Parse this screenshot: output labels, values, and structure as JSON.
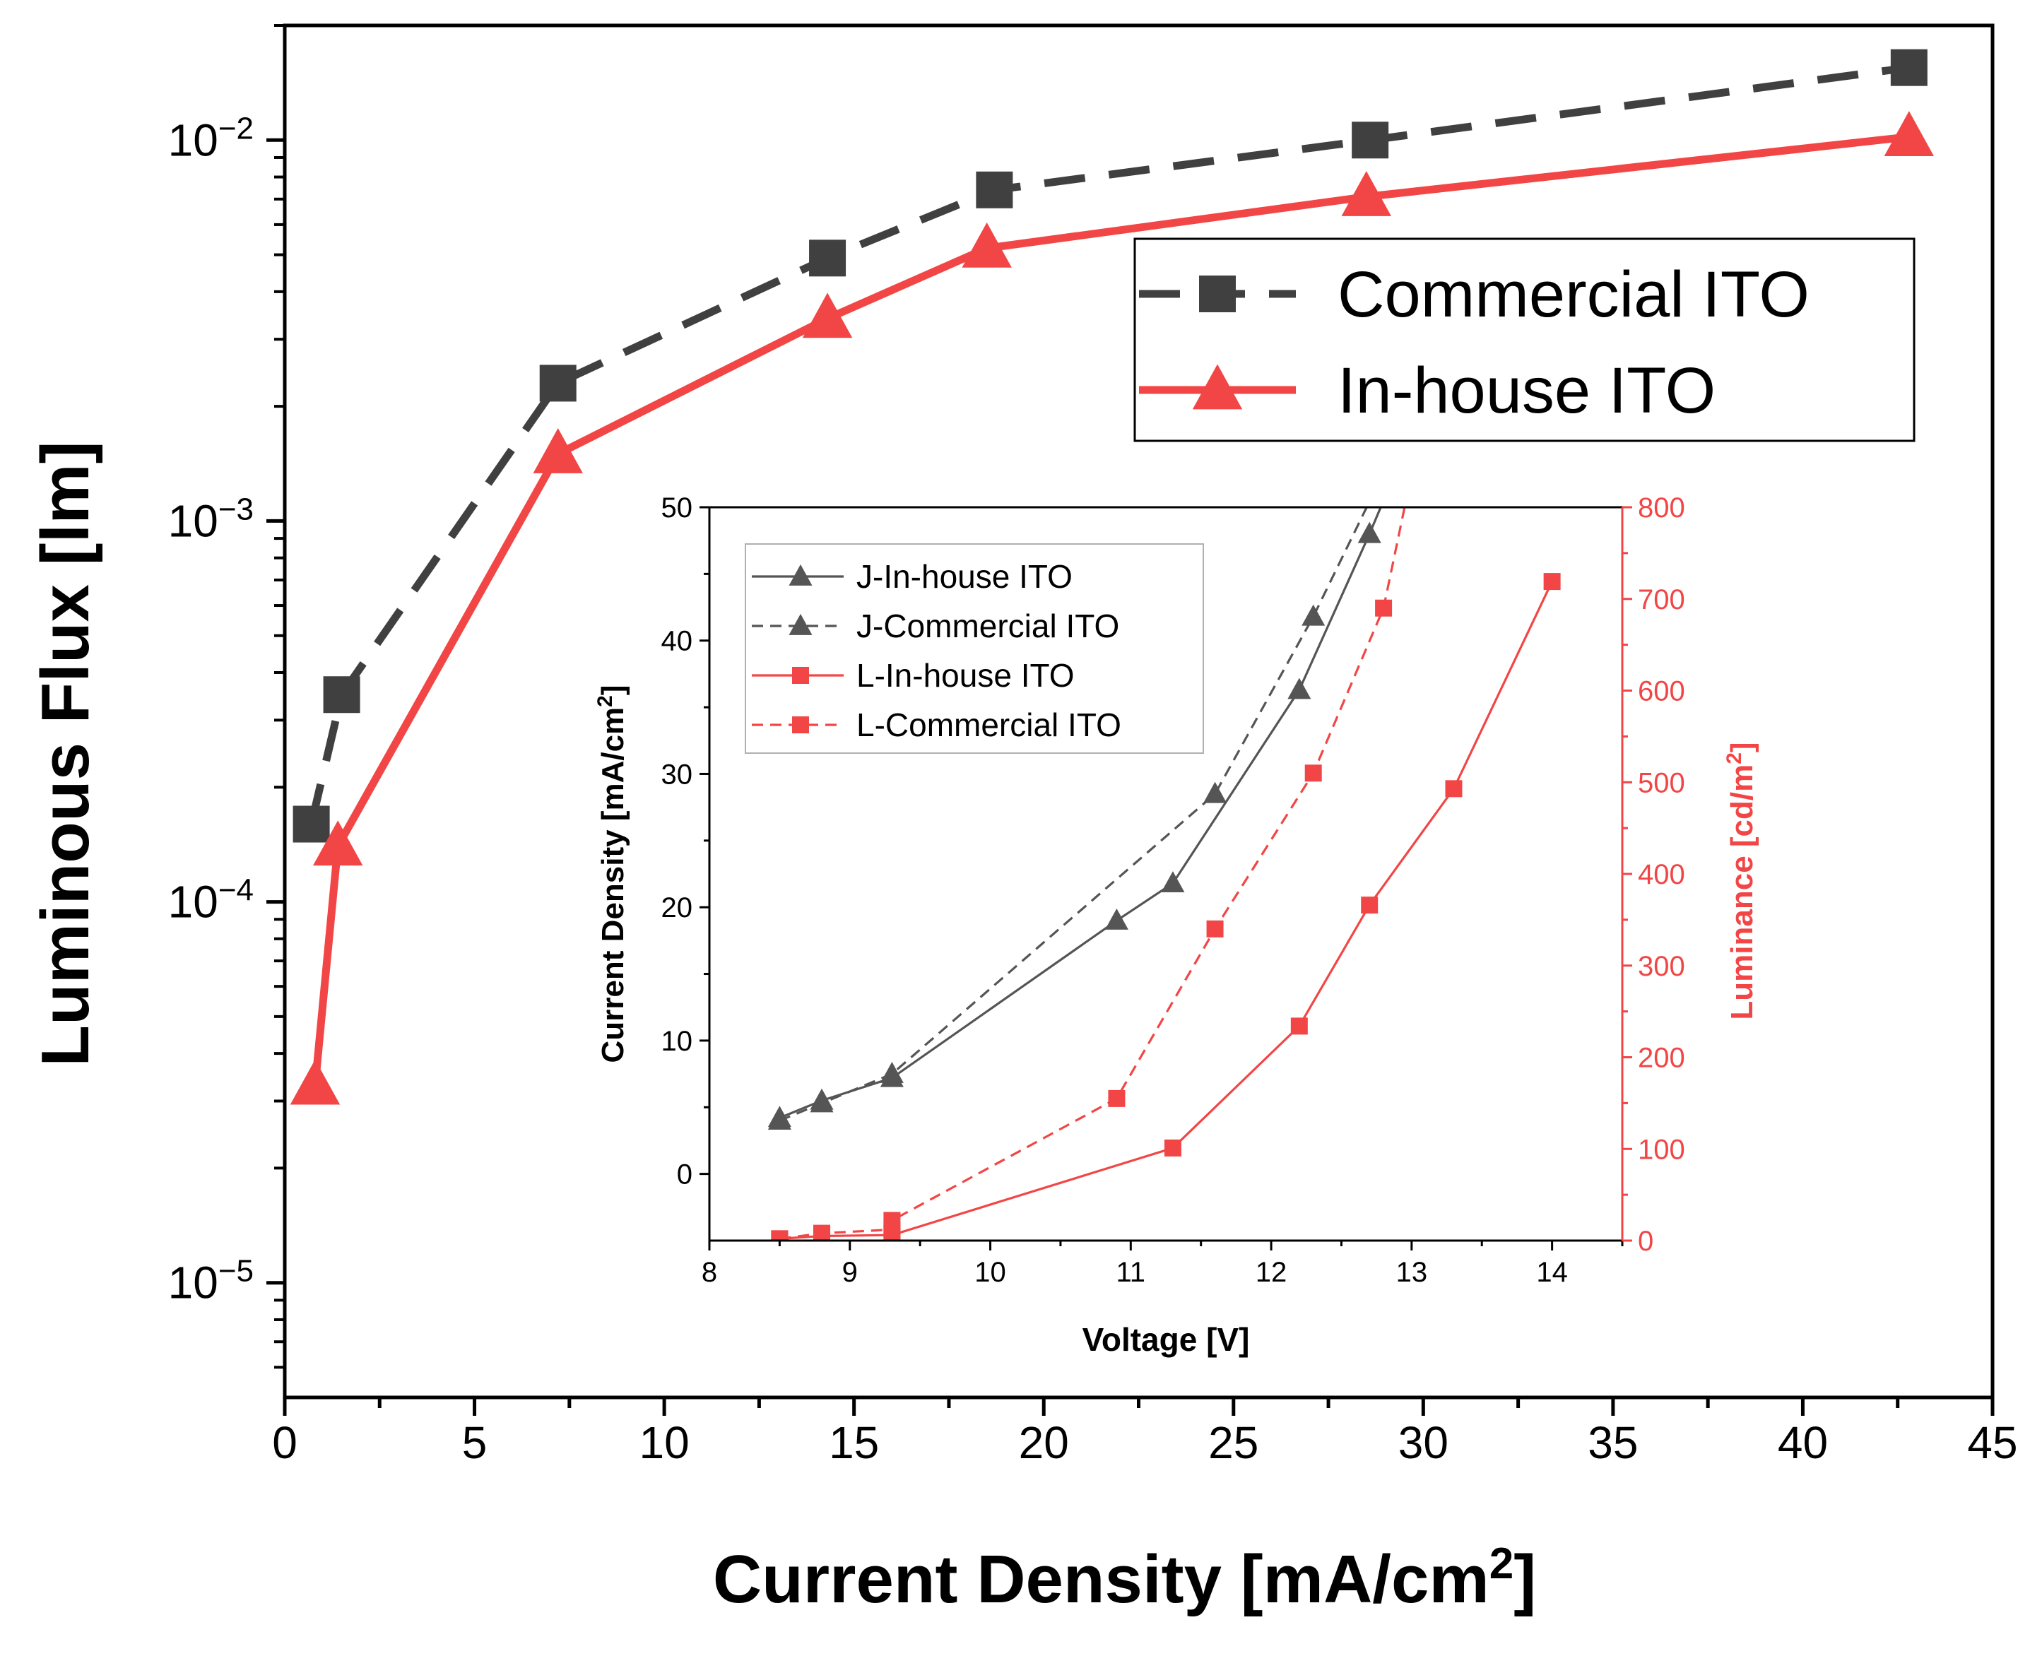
{
  "chart_data": [
    {
      "type": "line",
      "xlabel": "Current Density [mA/cm",
      "xlabel_sup": "2",
      "xlabel_tail": "]",
      "ylabel": "Luminous Flux [lm]",
      "xlim": [
        0,
        45
      ],
      "ylim": [
        5e-06,
        0.02
      ],
      "yscale": "log",
      "x_ticks": [
        "0",
        "5",
        "10",
        "15",
        "20",
        "25",
        "30",
        "35",
        "40",
        "45"
      ],
      "y_ticks": [
        {
          "base": "10",
          "exp": "−2",
          "value": 0.01
        },
        {
          "base": "10",
          "exp": "−3",
          "value": 0.001
        },
        {
          "base": "10",
          "exp": "−4",
          "value": 0.0001
        },
        {
          "base": "10",
          "exp": "−5",
          "value": 1e-05
        }
      ],
      "legend": "top-right",
      "series": [
        {
          "name": "Commercial ITO",
          "color": "#404040",
          "dash": "dashed",
          "marker": "square",
          "x": [
            0.7,
            1.5,
            7.2,
            14.3,
            18.7,
            28.6,
            42.8
          ],
          "y": [
            0.00016,
            0.00035,
            0.0023,
            0.0049,
            0.0074,
            0.01,
            0.0155
          ]
        },
        {
          "name": "In-house ITO",
          "color": "#f24646",
          "dash": "solid",
          "marker": "triangle",
          "x": [
            0.8,
            1.4,
            7.2,
            14.3,
            18.5,
            28.5,
            42.8
          ],
          "y": [
            3.3e-05,
            0.00014,
            0.0015,
            0.0034,
            0.0052,
            0.0071,
            0.0102
          ]
        }
      ]
    },
    {
      "type": "line",
      "xlabel": "Voltage [V]",
      "ylabel": "Current Density [mA/cm",
      "ylabel_sup": "2",
      "ylabel_tail": "]",
      "y2label": "Luminance [cd/m",
      "y2label_sup": "2",
      "y2label_tail": "]",
      "xlim": [
        8,
        14.5
      ],
      "ylim": [
        -5,
        50
      ],
      "y2lim": [
        0,
        800
      ],
      "x_ticks": [
        "8",
        "9",
        "10",
        "11",
        "12",
        "13",
        "14"
      ],
      "y_ticks": [
        "0",
        "10",
        "20",
        "30",
        "40",
        "50"
      ],
      "y2_ticks": [
        "0",
        "100",
        "200",
        "300",
        "400",
        "500",
        "600",
        "700",
        "800"
      ],
      "legend": "top-left",
      "series": [
        {
          "name": "J-In-house ITO",
          "axis": "left",
          "color": "#555555",
          "dash": "solid",
          "marker": "triangle",
          "x": [
            8.5,
            8.8,
            9.3,
            10.9,
            11.3,
            12.2,
            12.7,
            12.78
          ],
          "y": [
            4.2,
            5.5,
            7.2,
            19.0,
            21.8,
            36.3,
            48.0,
            50.0
          ]
        },
        {
          "name": "J-Commercial ITO",
          "axis": "left",
          "color": "#555555",
          "dash": "dashed",
          "marker": "triangle",
          "x": [
            8.5,
            8.8,
            9.3,
            11.6,
            12.3,
            12.68
          ],
          "y": [
            4.0,
            5.3,
            7.5,
            28.5,
            41.8,
            50.0
          ]
        },
        {
          "name": "L-In-house ITO",
          "axis": "right",
          "color": "#f24646",
          "dash": "solid",
          "marker": "square",
          "x": [
            8.5,
            8.8,
            9.3,
            11.3,
            12.2,
            12.7,
            13.3,
            14.0
          ],
          "y": [
            2,
            5,
            6,
            101,
            234,
            366,
            493,
            719
          ]
        },
        {
          "name": "L-Commercial ITO",
          "axis": "right",
          "color": "#f24646",
          "dash": "dashed",
          "marker": "square",
          "x": [
            8.5,
            8.8,
            9.3,
            9.3,
            10.9,
            11.6,
            12.3,
            12.8,
            12.95
          ],
          "y": [
            2,
            8,
            12,
            22,
            155,
            340,
            510,
            690,
            800
          ]
        }
      ]
    }
  ]
}
